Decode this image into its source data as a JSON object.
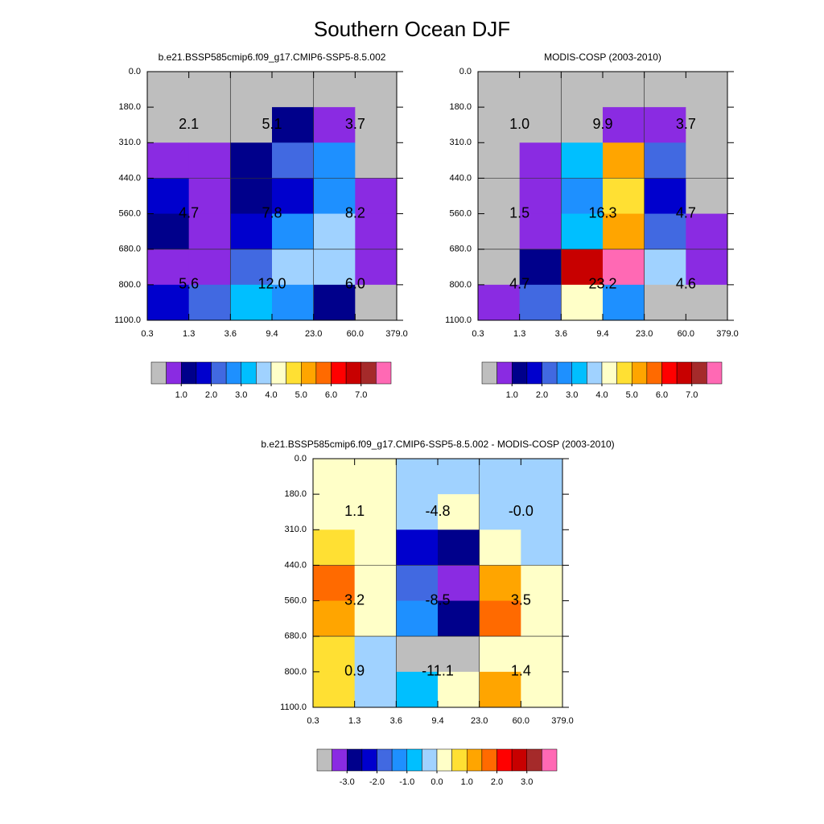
{
  "title": "Southern Ocean DJF",
  "chart_data": [
    {
      "type": "heatmap",
      "title": "b.e21.BSSP585cmip6.f09_g17.CMIP6-SSP5-8.5.002",
      "x_edges": [
        "0.3",
        "1.3",
        "3.6",
        "9.4",
        "23.0",
        "60.0",
        "379.0"
      ],
      "y_edges": [
        "0.0",
        "180.0",
        "310.0",
        "440.0",
        "560.0",
        "680.0",
        "800.0",
        "1100.0"
      ],
      "cells": [
        [
          "#bebebe",
          "#bebebe",
          "#bebebe",
          "#bebebe",
          "#bebebe",
          "#bebebe"
        ],
        [
          "#bebebe",
          "#bebebe",
          "#bebebe",
          "#00008b",
          "#8a2be2",
          "#bebebe"
        ],
        [
          "#8a2be2",
          "#8a2be2",
          "#00008b",
          "#4169e1",
          "#1e90ff",
          "#bebebe"
        ],
        [
          "#0000cd",
          "#8a2be2",
          "#00008b",
          "#0000cd",
          "#1e90ff",
          "#8a2be2"
        ],
        [
          "#00008b",
          "#8a2be2",
          "#0000cd",
          "#1e90ff",
          "#a0d2ff",
          "#8a2be2"
        ],
        [
          "#8a2be2",
          "#8a2be2",
          "#4169e1",
          "#a0d2ff",
          "#a0d2ff",
          "#8a2be2"
        ],
        [
          "#0000cd",
          "#4169e1",
          "#00bfff",
          "#1e90ff",
          "#00008b",
          "#bebebe"
        ]
      ],
      "box_labels": [
        [
          "2.1",
          "5.1",
          "3.7"
        ],
        [
          "4.7",
          "7.8",
          "8.2"
        ],
        [
          "5.6",
          "12.0",
          "6.0"
        ]
      ],
      "colorbar": {
        "colors": [
          "#bebebe",
          "#8a2be2",
          "#00008b",
          "#0000cd",
          "#4169e1",
          "#1e90ff",
          "#00bfff",
          "#a0d2ff",
          "#ffffc8",
          "#ffe033",
          "#ffa500",
          "#ff6a00",
          "#ff0000",
          "#c80000",
          "#a52a2a",
          "#ff69b4"
        ],
        "ticks": [
          {
            "value": 1,
            "label": "1.0"
          },
          {
            "value": 2,
            "label": "2.0"
          },
          {
            "value": 3,
            "label": "3.0"
          },
          {
            "value": 4,
            "label": "4.0"
          },
          {
            "value": 5,
            "label": "5.0"
          },
          {
            "value": 6,
            "label": "6.0"
          },
          {
            "value": 7,
            "label": "7.0"
          }
        ]
      }
    },
    {
      "type": "heatmap",
      "title": "MODIS-COSP (2003-2010)",
      "x_edges": [
        "0.3",
        "1.3",
        "3.6",
        "9.4",
        "23.0",
        "60.0",
        "379.0"
      ],
      "y_edges": [
        "0.0",
        "180.0",
        "310.0",
        "440.0",
        "560.0",
        "680.0",
        "800.0",
        "1100.0"
      ],
      "cells": [
        [
          "#bebebe",
          "#bebebe",
          "#bebebe",
          "#bebebe",
          "#bebebe",
          "#bebebe"
        ],
        [
          "#bebebe",
          "#bebebe",
          "#bebebe",
          "#8a2be2",
          "#8a2be2",
          "#bebebe"
        ],
        [
          "#bebebe",
          "#8a2be2",
          "#00bfff",
          "#ffa500",
          "#4169e1",
          "#bebebe"
        ],
        [
          "#bebebe",
          "#8a2be2",
          "#1e90ff",
          "#ffe033",
          "#0000cd",
          "#bebebe"
        ],
        [
          "#bebebe",
          "#8a2be2",
          "#00bfff",
          "#ffa500",
          "#4169e1",
          "#8a2be2"
        ],
        [
          "#bebebe",
          "#00008b",
          "#c80000",
          "#ff69b4",
          "#a0d2ff",
          "#8a2be2"
        ],
        [
          "#8a2be2",
          "#4169e1",
          "#ffffc8",
          "#1e90ff",
          "#bebebe",
          "#bebebe"
        ]
      ],
      "box_labels": [
        [
          "1.0",
          "9.9",
          "3.7"
        ],
        [
          "1.5",
          "16.3",
          "4.7"
        ],
        [
          "4.7",
          "23.2",
          "4.6"
        ]
      ],
      "colorbar": {
        "colors": [
          "#bebebe",
          "#8a2be2",
          "#00008b",
          "#0000cd",
          "#4169e1",
          "#1e90ff",
          "#00bfff",
          "#a0d2ff",
          "#ffffc8",
          "#ffe033",
          "#ffa500",
          "#ff6a00",
          "#ff0000",
          "#c80000",
          "#a52a2a",
          "#ff69b4"
        ],
        "ticks": [
          {
            "value": 1,
            "label": "1.0"
          },
          {
            "value": 2,
            "label": "2.0"
          },
          {
            "value": 3,
            "label": "3.0"
          },
          {
            "value": 4,
            "label": "4.0"
          },
          {
            "value": 5,
            "label": "5.0"
          },
          {
            "value": 6,
            "label": "6.0"
          },
          {
            "value": 7,
            "label": "7.0"
          }
        ]
      }
    },
    {
      "type": "heatmap",
      "title": "b.e21.BSSP585cmip6.f09_g17.CMIP6-SSP5-8.5.002 - MODIS-COSP (2003-2010)",
      "x_edges": [
        "0.3",
        "1.3",
        "3.6",
        "9.4",
        "23.0",
        "60.0",
        "379.0"
      ],
      "y_edges": [
        "0.0",
        "180.0",
        "310.0",
        "440.0",
        "560.0",
        "680.0",
        "800.0",
        "1100.0"
      ],
      "cells": [
        [
          "#ffffc8",
          "#ffffc8",
          "#a0d2ff",
          "#a0d2ff",
          "#a0d2ff",
          "#a0d2ff"
        ],
        [
          "#ffffc8",
          "#ffffc8",
          "#a0d2ff",
          "#ffffc8",
          "#a0d2ff",
          "#a0d2ff"
        ],
        [
          "#ffe033",
          "#ffffc8",
          "#0000cd",
          "#00008b",
          "#ffffc8",
          "#a0d2ff"
        ],
        [
          "#ff6a00",
          "#ffffc8",
          "#4169e1",
          "#8a2be2",
          "#ffa500",
          "#ffffc8"
        ],
        [
          "#ffa500",
          "#ffffc8",
          "#1e90ff",
          "#00008b",
          "#ff6a00",
          "#ffffc8"
        ],
        [
          "#ffe033",
          "#a0d2ff",
          "#bebebe",
          "#bebebe",
          "#ffffc8",
          "#ffffc8"
        ],
        [
          "#ffe033",
          "#a0d2ff",
          "#00bfff",
          "#ffffc8",
          "#ffa500",
          "#ffffc8"
        ]
      ],
      "box_labels": [
        [
          "1.1",
          "-4.8",
          "-0.0"
        ],
        [
          "3.2",
          "-8.5",
          "3.5"
        ],
        [
          "0.9",
          "-11.1",
          "1.4"
        ]
      ],
      "colorbar": {
        "colors": [
          "#bebebe",
          "#8a2be2",
          "#00008b",
          "#0000cd",
          "#4169e1",
          "#1e90ff",
          "#00bfff",
          "#a0d2ff",
          "#ffffc8",
          "#ffe033",
          "#ffa500",
          "#ff6a00",
          "#ff0000",
          "#c80000",
          "#a52a2a",
          "#ff69b4"
        ],
        "ticks": [
          {
            "value": -3,
            "label": "-3.0"
          },
          {
            "value": -2,
            "label": "-2.0"
          },
          {
            "value": -1,
            "label": "-1.0"
          },
          {
            "value": 0,
            "label": "0.0"
          },
          {
            "value": 1,
            "label": "1.0"
          },
          {
            "value": 2,
            "label": "2.0"
          },
          {
            "value": 3,
            "label": "3.0"
          }
        ]
      }
    }
  ]
}
